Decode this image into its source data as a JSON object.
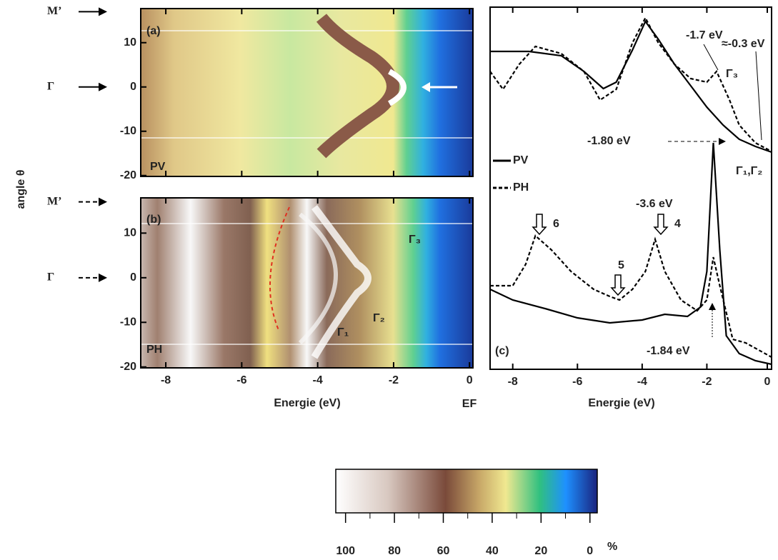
{
  "chart_data": [
    {
      "type": "heatmap",
      "ylabel": "angle θ",
      "xlim": [
        -8.66,
        0.09
      ],
      "ylim": [
        -20.2,
        17.7
      ],
      "xticks": [
        -8,
        -6,
        -4,
        -2,
        0
      ],
      "yticks": [
        10,
        0,
        -10,
        -20
      ],
      "show_xtick_labels": false,
      "arrow_style": "solid",
      "row_labels": [
        {
          "label": "M’",
          "value": 17
        },
        {
          "label": "Γ",
          "value": 0
        }
      ],
      "annotations": [
        "(a)",
        "PV"
      ]
    },
    {
      "type": "heatmap",
      "xlabel": "Energie (eV)",
      "fermi_label": "EF",
      "xlim": [
        -8.66,
        0.09
      ],
      "ylim": [
        -20.2,
        17.9
      ],
      "xticks": [
        -8,
        -6,
        -4,
        -2,
        0
      ],
      "yticks": [
        10,
        0,
        -10,
        -20
      ],
      "show_xtick_labels": true,
      "arrow_style": "dashed",
      "row_labels": [
        {
          "label": "M’",
          "value": 17
        },
        {
          "label": "Γ",
          "value": 0
        }
      ],
      "annotations": [
        "(b)",
        "PH",
        "Γ₃",
        "Γ₁",
        "Γ₂"
      ]
    },
    {
      "type": "line",
      "xlabel": "Energie (eV)",
      "xlim": [
        -8.7,
        0
      ],
      "ylim": [
        0,
        507
      ],
      "xticks": [
        -8,
        -6,
        -4,
        -2,
        0
      ],
      "series": [
        {
          "name": "PV",
          "color": "#000000",
          "line_style": "solid",
          "x": [
            -8.7,
            -7.5,
            -6.5,
            -5.8,
            -5.2,
            -4.8,
            -4.3,
            -3.9,
            -3.5,
            -3.0,
            -2.5,
            -2.0,
            -1.5,
            -1.0,
            -0.5,
            0
          ],
          "values": [
            445,
            445,
            439,
            417,
            393,
            402,
            447,
            487,
            462,
            427,
            397,
            367,
            342,
            322,
            312,
            304
          ]
        },
        {
          "name": "PH",
          "color": "#000000",
          "line_style": "dashed",
          "x": [
            -8.7,
            -8.3,
            -7.8,
            -7.3,
            -6.5,
            -5.8,
            -5.3,
            -4.8,
            -4.3,
            -3.9,
            -3.5,
            -3.0,
            -2.5,
            -2.0,
            -1.7,
            -1.3,
            -1.0,
            -0.5,
            0
          ],
          "values": [
            417,
            392,
            427,
            452,
            442,
            417,
            377,
            392,
            457,
            492,
            457,
            427,
            407,
            402,
            417,
            377,
            342,
            317,
            305
          ]
        },
        {
          "name": "PV",
          "color": "#000000",
          "line_style": "solid",
          "x": [
            -8.7,
            -8,
            -7,
            -6,
            -5,
            -4,
            -3.3,
            -2.6,
            -2.2,
            -2.0,
            -1.8,
            -1.6,
            -1.4,
            -1,
            -0.5,
            0
          ],
          "values": [
            112,
            97,
            85,
            72,
            65,
            69,
            77,
            74,
            87,
            137,
            317,
            167,
            47,
            22,
            12,
            7
          ]
        },
        {
          "name": "PH",
          "color": "#000000",
          "line_style": "dashed",
          "x": [
            -8.7,
            -8,
            -7.6,
            -7.3,
            -6.8,
            -6.2,
            -5.5,
            -5,
            -4.7,
            -4.3,
            -3.9,
            -3.6,
            -3.3,
            -2.8,
            -2.3,
            -2.0,
            -1.8,
            -1.6,
            -1.2,
            -0.8,
            -0.4,
            0
          ],
          "values": [
            117,
            117,
            147,
            187,
            167,
            137,
            112,
            102,
            97,
            112,
            137,
            182,
            137,
            97,
            82,
            97,
            157,
            117,
            42,
            37,
            27,
            17
          ]
        }
      ],
      "annotations": [
        "-1.7 eV",
        "≈-0.3 eV",
        "Γ₃",
        "-1.80 eV",
        "Γ₁,Γ₂",
        "-3.6 eV",
        "6",
        "5",
        "4",
        "-1.84 eV",
        "(c)"
      ]
    },
    {
      "type": "colorbar",
      "xlim": [
        104,
        -3
      ],
      "xticks": [
        100,
        80,
        60,
        40,
        20,
        0
      ],
      "unit": "%"
    }
  ]
}
